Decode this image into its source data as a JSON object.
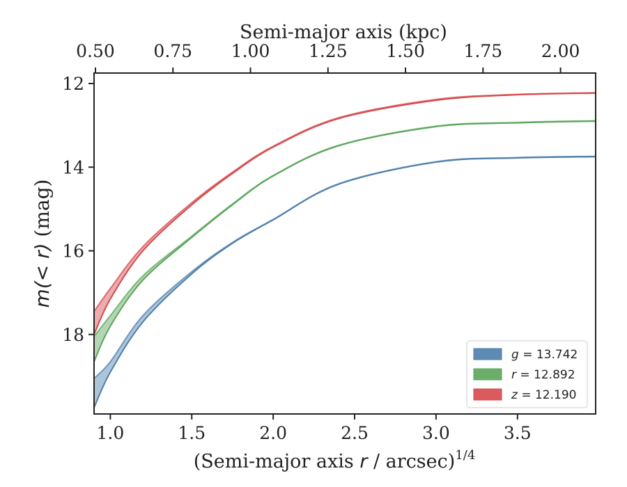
{
  "chart_data": {
    "type": "line",
    "top_axis": {
      "label": "Semi-major axis (kpc)",
      "ticks": [
        "0.50",
        "0.75",
        "1.00",
        "1.25",
        "1.50",
        "1.75",
        "2.00"
      ],
      "tick_values": [
        0.5,
        0.75,
        1.0,
        1.25,
        1.5,
        1.75,
        2.0
      ],
      "range": [
        0.4955,
        2.1133
      ]
    },
    "x_axis": {
      "label_prefix": "(Semi-major axis ",
      "label_var": "r",
      "label_mid": " / arcsec)",
      "label_exp": "1/4",
      "ticks": [
        "1.0",
        "1.5",
        "2.0",
        "2.5",
        "3.0",
        "3.5"
      ],
      "tick_values": [
        1.0,
        1.5,
        2.0,
        2.5,
        3.0,
        3.5
      ],
      "range": [
        0.9,
        3.98
      ]
    },
    "y_axis": {
      "label_math": "m(< r)",
      "label_unit": " (mag)",
      "ticks": [
        "12",
        "14",
        "16",
        "18"
      ],
      "tick_values": [
        12,
        14,
        16,
        18
      ],
      "range": [
        11.75,
        19.9
      ],
      "inverted": true
    },
    "legend_placement": "lower-right",
    "series": [
      {
        "name_var": "g",
        "name_value": "= 13.742",
        "color": "#4c7eab",
        "upper_x": [
          0.9,
          1.0,
          1.2,
          1.5,
          1.75,
          2.0,
          2.4,
          3.0,
          3.5,
          3.98
        ],
        "upper_y": [
          19.05,
          18.65,
          17.55,
          16.5,
          15.8,
          15.25,
          14.4,
          13.87,
          13.77,
          13.74
        ],
        "lower_x": [
          0.9,
          1.0,
          1.2,
          1.5,
          1.75,
          2.0,
          2.4,
          3.0,
          3.5,
          3.98
        ],
        "lower_y": [
          19.75,
          18.9,
          17.7,
          16.55,
          15.82,
          15.26,
          14.41,
          13.88,
          13.78,
          13.75
        ]
      },
      {
        "name_var": "r",
        "name_value": "= 12.892",
        "color": "#5aa55a",
        "upper_x": [
          0.9,
          1.0,
          1.2,
          1.5,
          1.75,
          2.0,
          2.4,
          3.0,
          3.5,
          3.98
        ],
        "upper_y": [
          18.05,
          17.55,
          16.6,
          15.65,
          14.88,
          14.2,
          13.48,
          13.02,
          12.93,
          12.89
        ],
        "lower_x": [
          0.9,
          1.0,
          1.2,
          1.5,
          1.75,
          2.0,
          2.4,
          3.0,
          3.5,
          3.98
        ],
        "lower_y": [
          18.65,
          17.8,
          16.7,
          15.68,
          14.9,
          14.21,
          13.49,
          13.03,
          12.94,
          12.9
        ]
      },
      {
        "name_var": "z",
        "name_value": "= 12.190",
        "color": "#d6484b",
        "upper_x": [
          0.9,
          1.0,
          1.2,
          1.5,
          1.75,
          2.0,
          2.4,
          3.0,
          3.5,
          3.98
        ],
        "upper_y": [
          17.45,
          16.9,
          15.9,
          14.85,
          14.12,
          13.5,
          12.82,
          12.38,
          12.26,
          12.22
        ],
        "lower_x": [
          0.9,
          1.0,
          1.2,
          1.5,
          1.75,
          2.0,
          2.4,
          3.0,
          3.5,
          3.98
        ],
        "lower_y": [
          18.0,
          17.15,
          16.0,
          14.9,
          14.15,
          13.52,
          12.84,
          12.4,
          12.27,
          12.23
        ]
      }
    ]
  }
}
